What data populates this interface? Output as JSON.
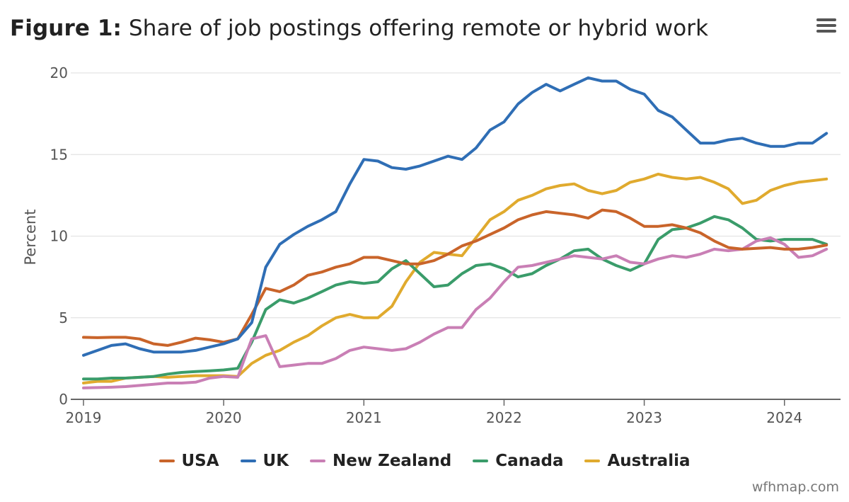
{
  "header": {
    "title_bold": "Figure 1:",
    "title_rest": "Share of job postings offering remote or hybrid work",
    "menu_icon": "hamburger-menu-icon"
  },
  "credit": "wfhmap.com",
  "chart_data": {
    "type": "line",
    "ylabel": "Percent",
    "xlabel": "",
    "ylim": [
      0,
      20
    ],
    "yticks": [
      0,
      5,
      10,
      15,
      20
    ],
    "xlim": [
      2019,
      2024.4
    ],
    "xticks": [
      2019,
      2020,
      2021,
      2022,
      2023,
      2024
    ],
    "grid": true,
    "legend_position": "bottom",
    "series": [
      {
        "name": "USA",
        "color": "#c9642a",
        "x": [
          2019.0,
          2019.1,
          2019.2,
          2019.3,
          2019.4,
          2019.5,
          2019.6,
          2019.7,
          2019.8,
          2019.9,
          2020.0,
          2020.1,
          2020.2,
          2020.3,
          2020.4,
          2020.5,
          2020.6,
          2020.7,
          2020.8,
          2020.9,
          2021.0,
          2021.1,
          2021.2,
          2021.3,
          2021.4,
          2021.5,
          2021.6,
          2021.7,
          2021.8,
          2021.9,
          2022.0,
          2022.1,
          2022.2,
          2022.3,
          2022.4,
          2022.5,
          2022.6,
          2022.7,
          2022.8,
          2022.9,
          2023.0,
          2023.1,
          2023.2,
          2023.3,
          2023.4,
          2023.5,
          2023.6,
          2023.7,
          2023.8,
          2023.9,
          2024.0,
          2024.1,
          2024.2,
          2024.3
        ],
        "values": [
          3.8,
          3.78,
          3.8,
          3.8,
          3.7,
          3.4,
          3.3,
          3.5,
          3.75,
          3.65,
          3.5,
          3.7,
          5.2,
          6.8,
          6.6,
          7.0,
          7.6,
          7.8,
          8.1,
          8.3,
          8.7,
          8.7,
          8.5,
          8.3,
          8.3,
          8.5,
          8.9,
          9.4,
          9.7,
          10.1,
          10.5,
          11.0,
          11.3,
          11.5,
          11.4,
          11.3,
          11.1,
          11.6,
          11.5,
          11.1,
          10.6,
          10.6,
          10.7,
          10.5,
          10.2,
          9.7,
          9.3,
          9.2,
          9.25,
          9.3,
          9.2,
          9.2,
          9.3,
          9.45
        ]
      },
      {
        "name": "UK",
        "color": "#2f6eb5",
        "x": [
          2019.0,
          2019.1,
          2019.2,
          2019.3,
          2019.4,
          2019.5,
          2019.6,
          2019.7,
          2019.8,
          2019.9,
          2020.0,
          2020.1,
          2020.2,
          2020.3,
          2020.4,
          2020.5,
          2020.6,
          2020.7,
          2020.8,
          2020.9,
          2021.0,
          2021.1,
          2021.2,
          2021.3,
          2021.4,
          2021.5,
          2021.6,
          2021.7,
          2021.8,
          2021.9,
          2022.0,
          2022.1,
          2022.2,
          2022.3,
          2022.4,
          2022.5,
          2022.6,
          2022.7,
          2022.8,
          2022.9,
          2023.0,
          2023.1,
          2023.2,
          2023.3,
          2023.4,
          2023.5,
          2023.6,
          2023.7,
          2023.8,
          2023.9,
          2024.0,
          2024.1,
          2024.2,
          2024.3
        ],
        "values": [
          2.7,
          3.0,
          3.3,
          3.4,
          3.1,
          2.9,
          2.9,
          2.9,
          3.0,
          3.2,
          3.4,
          3.7,
          4.7,
          8.1,
          9.5,
          10.1,
          10.6,
          11.0,
          11.5,
          13.2,
          14.7,
          14.6,
          14.2,
          14.1,
          14.3,
          14.6,
          14.9,
          14.7,
          15.4,
          16.5,
          17.0,
          18.1,
          18.8,
          19.3,
          18.9,
          19.3,
          19.7,
          19.5,
          19.5,
          19.0,
          18.7,
          17.7,
          17.3,
          16.5,
          15.7,
          15.7,
          15.9,
          16.0,
          15.7,
          15.5,
          15.5,
          15.7,
          15.7,
          16.3
        ]
      },
      {
        "name": "New Zealand",
        "color": "#c97fb5",
        "x": [
          2019.0,
          2019.1,
          2019.2,
          2019.3,
          2019.4,
          2019.5,
          2019.6,
          2019.7,
          2019.8,
          2019.9,
          2020.0,
          2020.1,
          2020.2,
          2020.3,
          2020.4,
          2020.5,
          2020.6,
          2020.7,
          2020.8,
          2020.9,
          2021.0,
          2021.1,
          2021.2,
          2021.3,
          2021.4,
          2021.5,
          2021.6,
          2021.7,
          2021.8,
          2021.9,
          2022.0,
          2022.1,
          2022.2,
          2022.3,
          2022.4,
          2022.5,
          2022.6,
          2022.7,
          2022.8,
          2022.9,
          2023.0,
          2023.1,
          2023.2,
          2023.3,
          2023.4,
          2023.5,
          2023.6,
          2023.7,
          2023.8,
          2023.9,
          2024.0,
          2024.1,
          2024.2,
          2024.3
        ],
        "values": [
          0.7,
          0.72,
          0.74,
          0.78,
          0.85,
          0.92,
          1.0,
          1.0,
          1.05,
          1.3,
          1.4,
          1.35,
          3.7,
          3.9,
          2.0,
          2.1,
          2.2,
          2.2,
          2.5,
          3.0,
          3.2,
          3.1,
          3.0,
          3.1,
          3.5,
          4.0,
          4.4,
          4.4,
          5.5,
          6.2,
          7.2,
          8.1,
          8.2,
          8.4,
          8.6,
          8.8,
          8.7,
          8.6,
          8.8,
          8.4,
          8.3,
          8.6,
          8.8,
          8.7,
          8.9,
          9.2,
          9.1,
          9.2,
          9.7,
          9.9,
          9.5,
          8.7,
          8.8,
          9.2
        ]
      },
      {
        "name": "Canada",
        "color": "#3a9c6a",
        "x": [
          2019.0,
          2019.1,
          2019.2,
          2019.3,
          2019.4,
          2019.5,
          2019.6,
          2019.7,
          2019.8,
          2019.9,
          2020.0,
          2020.1,
          2020.2,
          2020.3,
          2020.4,
          2020.5,
          2020.6,
          2020.7,
          2020.8,
          2020.9,
          2021.0,
          2021.1,
          2021.2,
          2021.3,
          2021.4,
          2021.5,
          2021.6,
          2021.7,
          2021.8,
          2021.9,
          2022.0,
          2022.1,
          2022.2,
          2022.3,
          2022.4,
          2022.5,
          2022.6,
          2022.7,
          2022.8,
          2022.9,
          2023.0,
          2023.1,
          2023.2,
          2023.3,
          2023.4,
          2023.5,
          2023.6,
          2023.7,
          2023.8,
          2023.9,
          2024.0,
          2024.1,
          2024.2,
          2024.3
        ],
        "values": [
          1.25,
          1.25,
          1.3,
          1.3,
          1.35,
          1.4,
          1.55,
          1.65,
          1.7,
          1.75,
          1.8,
          1.9,
          3.5,
          5.5,
          6.1,
          5.9,
          6.2,
          6.6,
          7.0,
          7.2,
          7.1,
          7.2,
          8.0,
          8.5,
          7.7,
          6.9,
          7.0,
          7.7,
          8.2,
          8.3,
          8.0,
          7.5,
          7.7,
          8.2,
          8.6,
          9.1,
          9.2,
          8.6,
          8.2,
          7.9,
          8.3,
          9.8,
          10.4,
          10.5,
          10.8,
          11.2,
          11.0,
          10.5,
          9.8,
          9.7,
          9.8,
          9.8,
          9.8,
          9.5
        ]
      },
      {
        "name": "Australia",
        "color": "#e0aa2e",
        "x": [
          2019.0,
          2019.1,
          2019.2,
          2019.3,
          2019.4,
          2019.5,
          2019.6,
          2019.7,
          2019.8,
          2019.9,
          2020.0,
          2020.1,
          2020.2,
          2020.3,
          2020.4,
          2020.5,
          2020.6,
          2020.7,
          2020.8,
          2020.9,
          2021.0,
          2021.1,
          2021.2,
          2021.3,
          2021.4,
          2021.5,
          2021.6,
          2021.7,
          2021.8,
          2021.9,
          2022.0,
          2022.1,
          2022.2,
          2022.3,
          2022.4,
          2022.5,
          2022.6,
          2022.7,
          2022.8,
          2022.9,
          2023.0,
          2023.1,
          2023.2,
          2023.3,
          2023.4,
          2023.5,
          2023.6,
          2023.7,
          2023.8,
          2023.9,
          2024.0,
          2024.1,
          2024.2,
          2024.3
        ],
        "values": [
          1.0,
          1.1,
          1.1,
          1.3,
          1.35,
          1.4,
          1.35,
          1.4,
          1.45,
          1.45,
          1.45,
          1.4,
          2.2,
          2.7,
          3.0,
          3.5,
          3.9,
          4.5,
          5.0,
          5.2,
          5.0,
          5.0,
          5.7,
          7.2,
          8.4,
          9.0,
          8.9,
          8.8,
          9.9,
          11.0,
          11.5,
          12.2,
          12.5,
          12.9,
          13.1,
          13.2,
          12.8,
          12.6,
          12.8,
          13.3,
          13.5,
          13.8,
          13.6,
          13.5,
          13.6,
          13.3,
          12.9,
          12.0,
          12.2,
          12.8,
          13.1,
          13.3,
          13.4,
          13.5
        ]
      }
    ]
  }
}
